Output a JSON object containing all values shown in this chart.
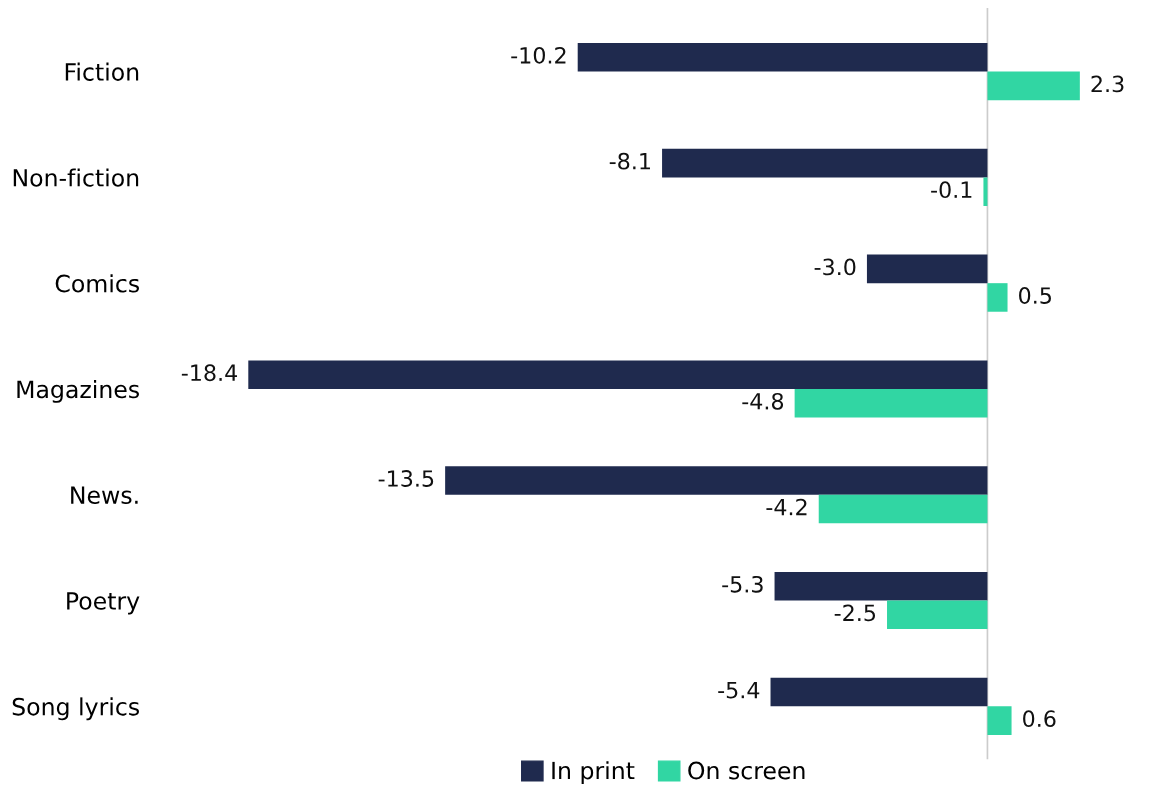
{
  "chart_data": {
    "type": "bar",
    "orientation": "horizontal",
    "categories": [
      "Fiction",
      "Non-fiction",
      "Comics",
      "Magazines",
      "News.",
      "Poetry",
      "Song lyrics"
    ],
    "series": [
      {
        "name": "In print",
        "color": "#1f2a4e",
        "values": [
          -10.2,
          -8.1,
          -3.0,
          -18.4,
          -13.5,
          -5.3,
          -5.4
        ],
        "value_labels": [
          "-10.2",
          "-8.1",
          "-3.0",
          "-18.4",
          "-13.5",
          "-5.3",
          "-5.4"
        ]
      },
      {
        "name": "On screen",
        "color": "#31d6a3",
        "values": [
          2.3,
          -0.1,
          0.5,
          -4.8,
          -4.2,
          -2.5,
          0.6
        ],
        "value_labels": [
          "2.3",
          "-0.1",
          "0.5",
          "-4.8",
          "-4.2",
          "-2.5",
          "0.6"
        ]
      }
    ],
    "tick_labels": "y",
    "legend": "bottom",
    "grid": false,
    "ref_lines": [
      {
        "axis": "x",
        "value": 0,
        "color": "#cccccc"
      }
    ]
  }
}
